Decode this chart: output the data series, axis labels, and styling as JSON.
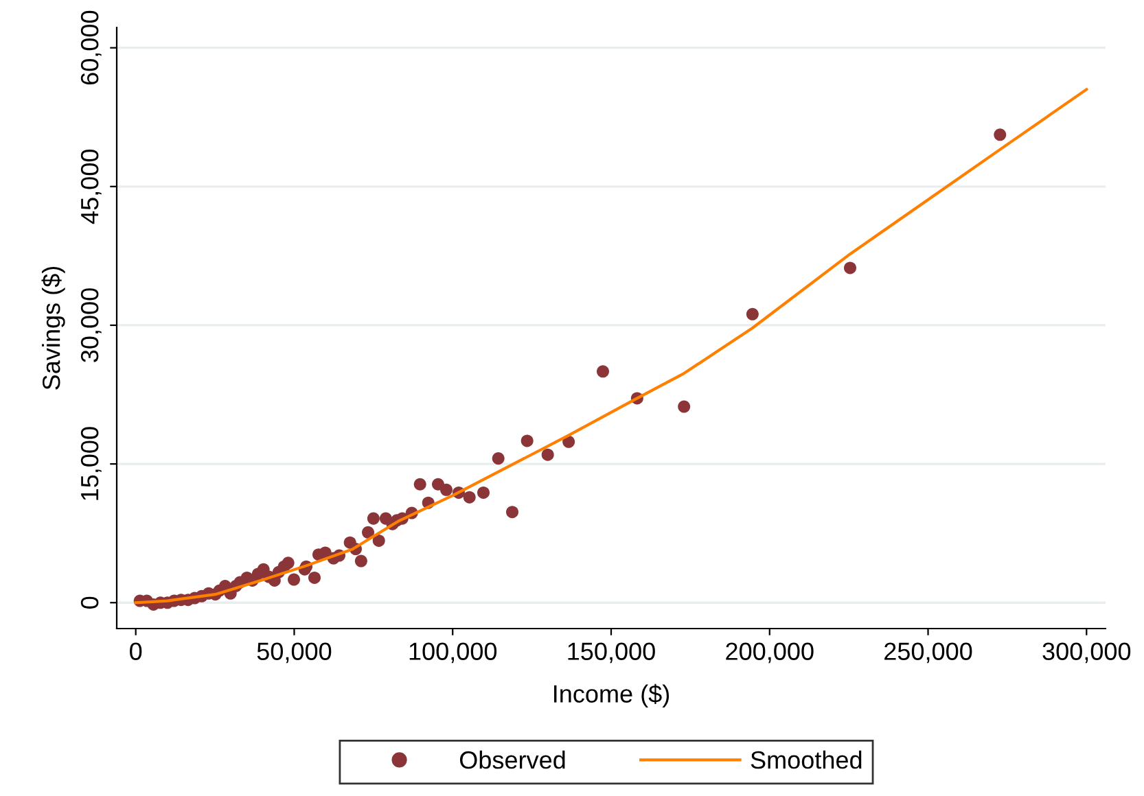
{
  "chart_data": {
    "type": "scatter",
    "xlabel": "Income ($)",
    "ylabel": "Savings ($)",
    "xlim": [
      -6000,
      306000
    ],
    "xticks": [
      {
        "value": 0,
        "label": "0"
      },
      {
        "value": 50000,
        "label": "50,000"
      },
      {
        "value": 100000,
        "label": "100,000"
      },
      {
        "value": 150000,
        "label": "150,000"
      },
      {
        "value": 200000,
        "label": "200,000"
      },
      {
        "value": 250000,
        "label": "250,000"
      },
      {
        "value": 300000,
        "label": "300,000"
      }
    ],
    "ylim": [
      -2800,
      62200
    ],
    "yticks": [
      {
        "value": 0,
        "label": "0"
      },
      {
        "value": 15000,
        "label": "15,000"
      },
      {
        "value": 30000,
        "label": "30,000"
      },
      {
        "value": 45000,
        "label": "45,000"
      },
      {
        "value": 60000,
        "label": "60,000"
      }
    ],
    "grid": "y",
    "legend": "bottom",
    "marker": "circle",
    "series": [
      {
        "name": "Observed",
        "color": "#8b3538",
        "x": [
          1300,
          3500,
          5600,
          7800,
          10000,
          12100,
          14300,
          16500,
          18600,
          20800,
          23000,
          25100,
          26400,
          28200,
          29900,
          31600,
          32900,
          35100,
          36800,
          38600,
          40300,
          42000,
          43800,
          45100,
          46800,
          48100,
          49900,
          53300,
          53800,
          56400,
          57700,
          59800,
          62400,
          64200,
          67600,
          69400,
          71100,
          73300,
          75000,
          76700,
          78900,
          81000,
          82400,
          84100,
          87100,
          89700,
          92300,
          95400,
          98000,
          101900,
          105300,
          109700,
          114400,
          118800,
          123500,
          130000,
          136600,
          147400,
          158200,
          173000,
          194600,
          225400,
          272700
        ],
        "values": [
          200,
          200,
          -200,
          0,
          0,
          200,
          300,
          300,
          500,
          700,
          1000,
          900,
          1300,
          1800,
          1000,
          1800,
          2200,
          2700,
          2400,
          3100,
          3600,
          2800,
          2400,
          3300,
          3900,
          4300,
          2500,
          3600,
          3900,
          2700,
          5200,
          5400,
          4800,
          5100,
          6500,
          5800,
          4500,
          7600,
          9100,
          6700,
          9100,
          8500,
          8900,
          9100,
          9700,
          12800,
          10800,
          12800,
          12200,
          11900,
          11400,
          11900,
          15600,
          9800,
          17500,
          16000,
          17400,
          25000,
          22100,
          21200,
          31200,
          36200,
          50600
        ]
      },
      {
        "name": "Smoothed",
        "type": "line",
        "color": "#ff8000",
        "marker": "none",
        "line_style": "solid",
        "x": [
          0,
          10000,
          25100,
          39400,
          53800,
          68500,
          82800,
          100100,
          136600,
          158200,
          173000,
          194600,
          225400,
          272700,
          300000
        ],
        "values": [
          0,
          200,
          900,
          2400,
          4000,
          5800,
          8800,
          11600,
          18100,
          22100,
          24800,
          29700,
          37700,
          49000,
          55500
        ]
      }
    ]
  }
}
